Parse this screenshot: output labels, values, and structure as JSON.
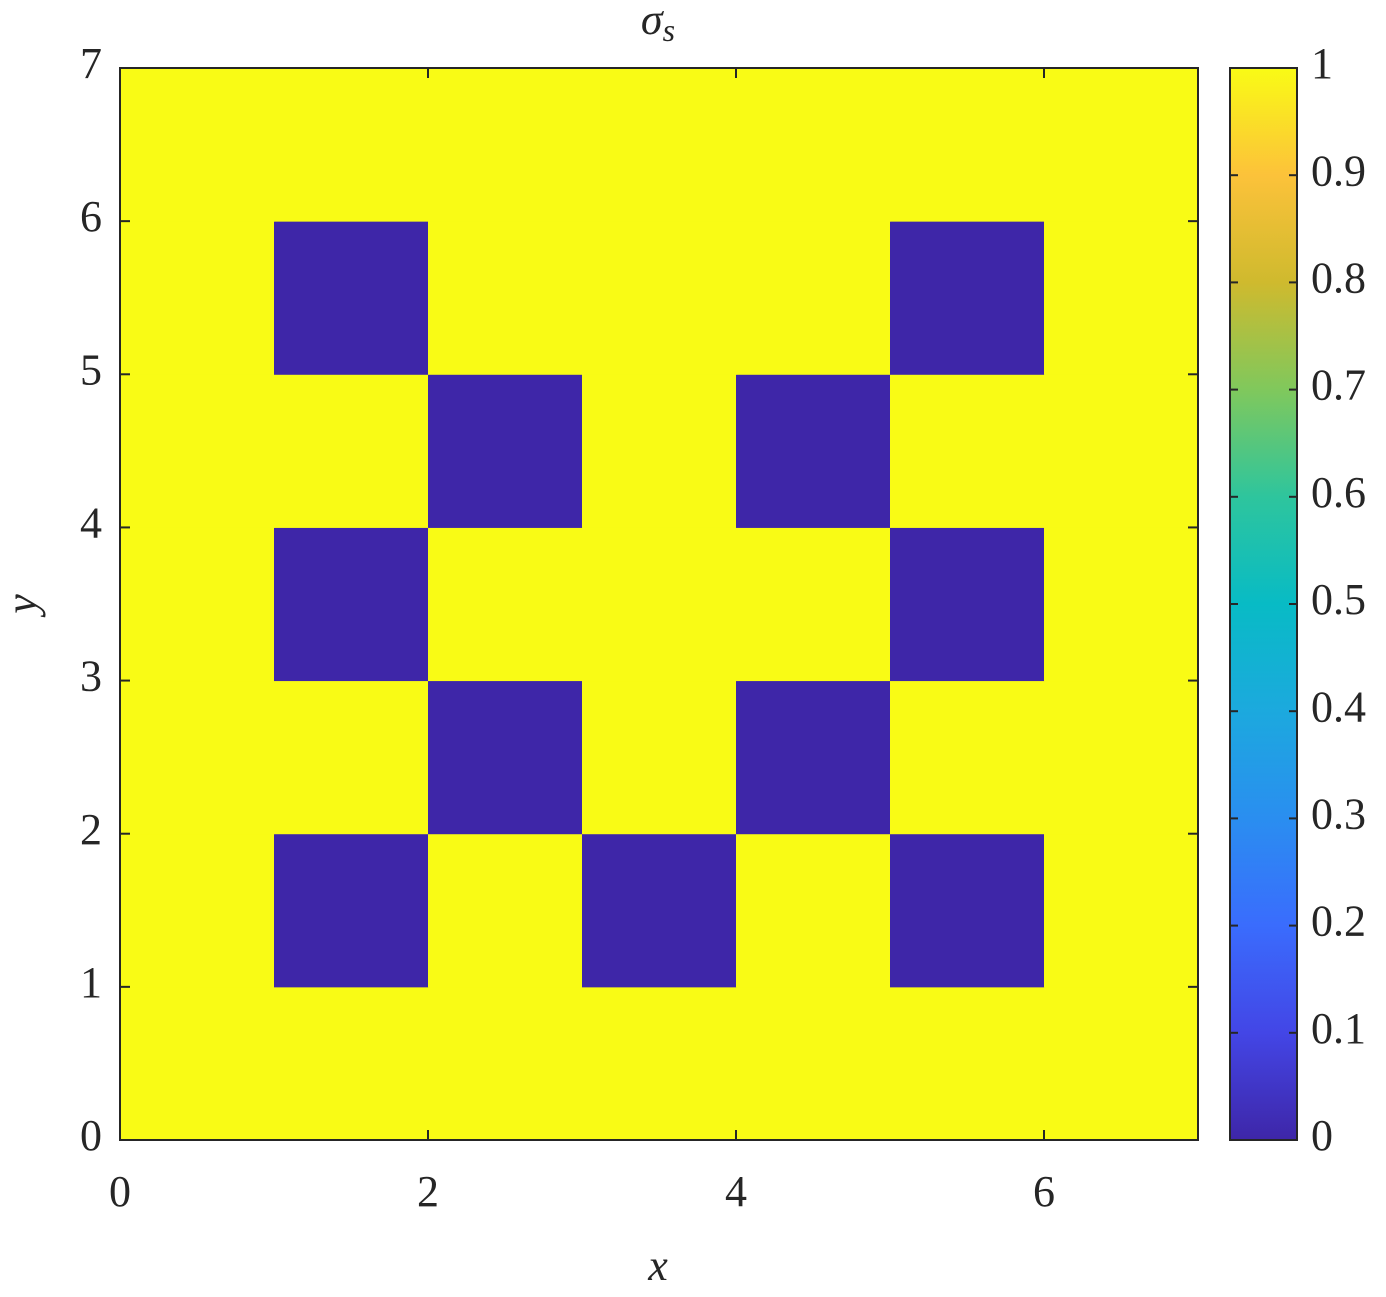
{
  "chart_data": {
    "type": "heatmap",
    "title": {
      "symbol": "σ",
      "subscript": "s"
    },
    "x_label": "x",
    "y_label": "y",
    "xlim": [
      0,
      7
    ],
    "xticks": [
      0,
      2,
      4,
      6
    ],
    "ylim": [
      0,
      7
    ],
    "yticks": [
      0,
      1,
      2,
      3,
      4,
      5,
      6,
      7
    ],
    "z": [
      [
        1,
        1,
        1,
        1,
        1,
        1,
        1
      ],
      [
        1,
        0,
        1,
        0,
        1,
        0,
        1
      ],
      [
        1,
        1,
        0,
        1,
        0,
        1,
        1
      ],
      [
        1,
        0,
        1,
        1,
        1,
        0,
        1
      ],
      [
        1,
        1,
        0,
        1,
        0,
        1,
        1
      ],
      [
        1,
        0,
        1,
        1,
        1,
        0,
        1
      ],
      [
        1,
        1,
        1,
        1,
        1,
        1,
        1
      ]
    ],
    "clim": [
      0,
      1
    ],
    "cticks": [
      0,
      0.1,
      0.2,
      0.3,
      0.4,
      0.5,
      0.6,
      0.7,
      0.8,
      0.9,
      1
    ],
    "colormap": [
      "#3e26a8",
      "#4346e6",
      "#3a6cfd",
      "#2a8ef0",
      "#1ca9de",
      "#08bbc5",
      "#2ec59d",
      "#80c85c",
      "#cfba2e",
      "#fcc23a",
      "#f9fb15"
    ]
  }
}
